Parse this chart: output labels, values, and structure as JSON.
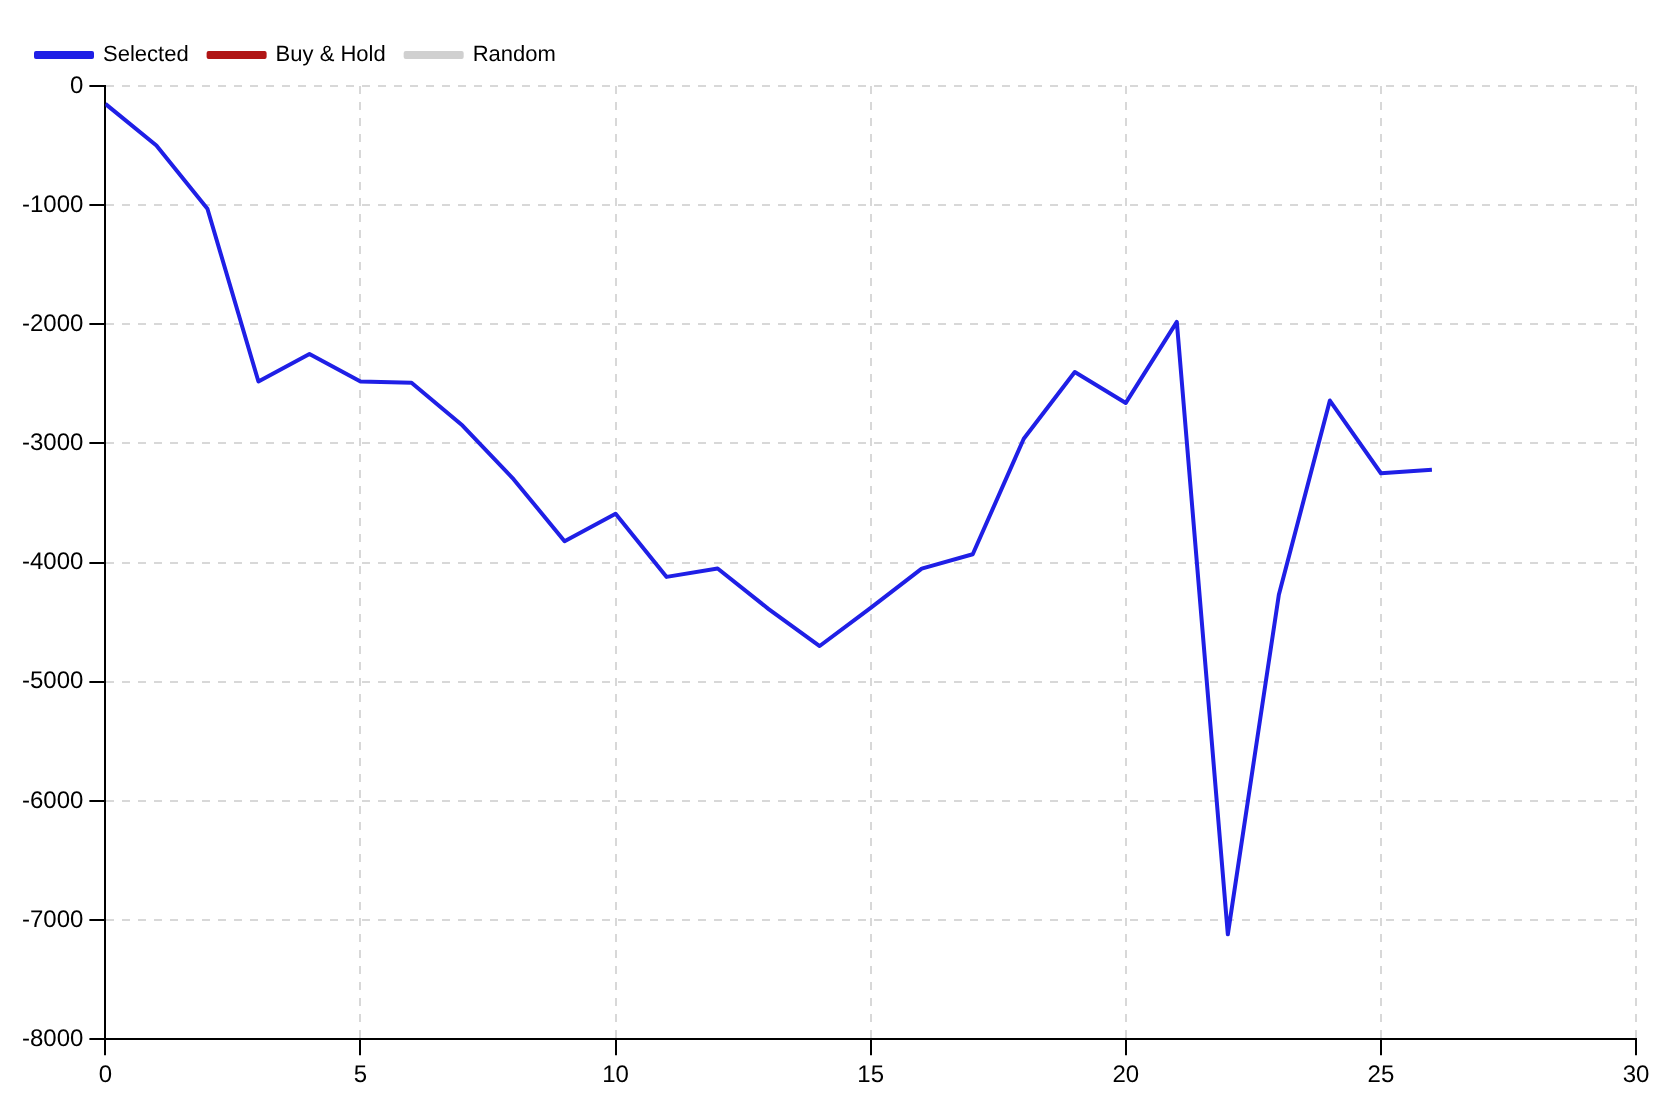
{
  "chart_data": {
    "type": "line",
    "x": [
      0,
      1,
      2,
      3,
      4,
      5,
      6,
      7,
      8,
      9,
      10,
      11,
      12,
      13,
      14,
      15,
      16,
      17,
      18,
      19,
      20,
      21,
      22,
      23,
      24,
      25,
      26
    ],
    "series": [
      {
        "name": "Selected",
        "color": "#1f1fe6",
        "values": [
          -150,
          -500,
          -1030,
          -2480,
          -2250,
          -2480,
          -2490,
          -2850,
          -3300,
          -3820,
          -3590,
          -4120,
          -4050,
          -4390,
          -4700,
          -4380,
          -4050,
          -3930,
          -2960,
          -2400,
          -2660,
          -1980,
          -7120,
          -4270,
          -2640,
          -3250,
          -3220
        ]
      },
      {
        "name": "Buy & Hold",
        "color": "#b01515",
        "values": [
          null,
          null,
          null,
          null,
          null,
          null,
          null,
          null,
          null,
          null,
          null,
          null,
          null,
          null,
          null,
          null,
          null,
          null,
          null,
          null,
          null,
          null,
          null,
          null,
          null,
          null,
          null
        ]
      },
      {
        "name": "Random",
        "color": "#d0d0d0",
        "values": [
          null,
          null,
          null,
          null,
          null,
          null,
          null,
          null,
          null,
          null,
          null,
          null,
          null,
          null,
          null,
          null,
          null,
          null,
          null,
          null,
          null,
          null,
          null,
          null,
          null,
          null,
          null
        ]
      }
    ],
    "xlim": [
      0,
      30
    ],
    "xticks": [
      0,
      5,
      10,
      15,
      20,
      25,
      30
    ],
    "ylim": [
      -8000,
      0
    ],
    "yticks": [
      -8000,
      -7000,
      -6000,
      -5000,
      -4000,
      -3000,
      -2000,
      -1000,
      0
    ],
    "grid": true,
    "legend": "top left",
    "marker": "none",
    "line_style": "solid"
  }
}
